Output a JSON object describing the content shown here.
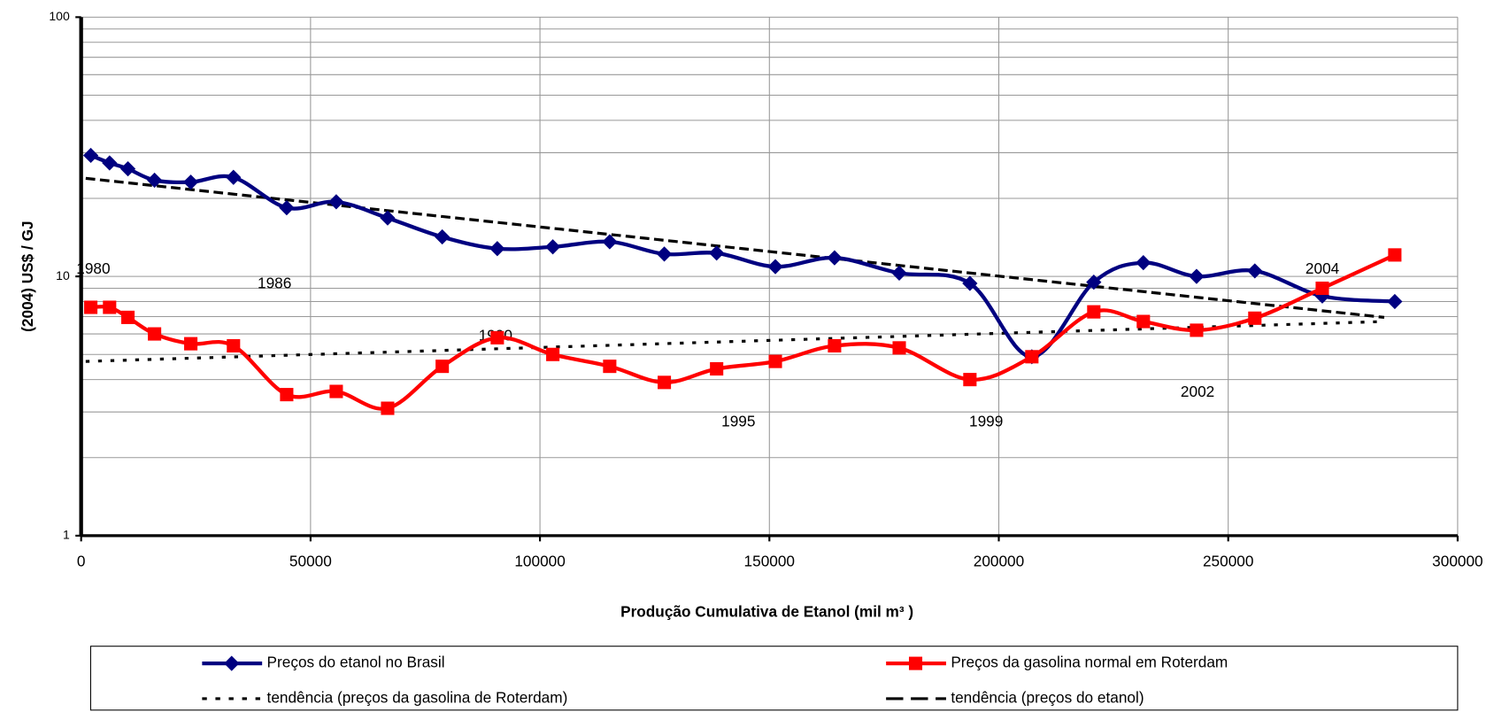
{
  "chart_data": {
    "type": "line",
    "ylabel": "(2004) US$ / GJ",
    "xlabel": "Produção Cumulativa de Etanol (mil m³ )",
    "log_y": true,
    "grid": true,
    "xlim": [
      0,
      300000
    ],
    "xticks": [
      0,
      50000,
      100000,
      150000,
      200000,
      250000,
      300000
    ],
    "ylim": [
      1,
      100
    ],
    "yticks": [
      1,
      10,
      100
    ],
    "minor_yticks": [
      2,
      3,
      4,
      5,
      6,
      7,
      8,
      9,
      20,
      30,
      40,
      50,
      60,
      70,
      80,
      90
    ],
    "legend": "bottom",
    "series": [
      {
        "name": "Preços do etanol no Brasil",
        "color": "#000080",
        "marker": "diamond",
        "smooth": true,
        "x": [
          2100,
          6200,
          10200,
          16000,
          23900,
          33200,
          44800,
          55600,
          66800,
          78700,
          90700,
          102800,
          115200,
          127100,
          138500,
          151300,
          164200,
          178300,
          193700,
          207200,
          220700,
          231500,
          243100,
          255800,
          270500,
          286300
        ],
        "values": [
          29.3,
          27.4,
          26.0,
          23.5,
          23.1,
          24.1,
          18.4,
          19.4,
          16.8,
          14.2,
          12.8,
          13.0,
          13.6,
          12.2,
          12.3,
          10.9,
          11.8,
          10.3,
          9.4,
          4.9,
          9.5,
          11.3,
          10.0,
          10.5,
          8.4,
          8.0
        ]
      },
      {
        "name": "Preços da gasolina normal em Roterdam",
        "color": "#ff0000",
        "marker": "square",
        "smooth": true,
        "x": [
          2100,
          6200,
          10200,
          16000,
          23900,
          33200,
          44800,
          55600,
          66800,
          78700,
          90700,
          102800,
          115200,
          127100,
          138500,
          151300,
          164200,
          178300,
          193700,
          207200,
          220700,
          231500,
          243100,
          255800,
          270500,
          286300
        ],
        "values": [
          7.6,
          7.6,
          6.95,
          6.0,
          5.5,
          5.4,
          3.5,
          3.6,
          3.1,
          4.5,
          5.8,
          5.0,
          4.5,
          3.9,
          4.4,
          4.7,
          5.4,
          5.3,
          4.0,
          4.9,
          7.3,
          6.7,
          6.2,
          6.9,
          9.0,
          12.1
        ]
      },
      {
        "name": "tendência (preços da gasolina de Roterdam)",
        "color": "#000000",
        "dash": "short",
        "x": [
          1000,
          284000
        ],
        "values": [
          4.7,
          6.7
        ]
      },
      {
        "name": "tendência (preços do etanol)",
        "color": "#000000",
        "dash": "long",
        "x": [
          1000,
          284000
        ],
        "values": [
          23.9,
          6.95
        ]
      }
    ],
    "annotations": [
      "1980",
      "1986",
      "1990",
      "1995",
      "1999",
      "2002",
      "2004"
    ]
  }
}
